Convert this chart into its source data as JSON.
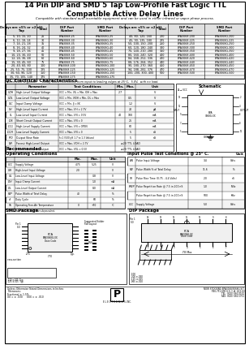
{
  "title": "14 Pin DIP and SMD 5 Tap Low-Profile Fast Logic TTL\nCompatible Active Delay Lines",
  "subtitle": "Compatible with standard auto-insertable equipment and can be used in either infrared or vapor phase process.",
  "table1_rows": [
    [
      "5, 10, 15, 20",
      "25",
      "EPA3068-25",
      "EPA3068G-25",
      "40, 80, 120, 160",
      "200",
      "EPA3068-200",
      "EPA3068G-200"
    ],
    [
      "6, 12, 18, 24",
      "30",
      "EPA3068-30",
      "EPA3068G-30",
      "45, 90, 135, 180",
      "225",
      "EPA3068-225",
      "EPA3068G-225"
    ],
    [
      "7, 14, 21, 28",
      "35",
      "EPA3068-35",
      "EPA3068G-35",
      "50, 100, 150, 200",
      "250",
      "EPA3068-250",
      "EPA3068G-250"
    ],
    [
      "8, 16, 24, 32",
      "40",
      "EPA3068-40",
      "EPA3068G-40",
      "60, 120, 180, 240",
      "300",
      "EPA3068-300",
      "EPA3068G-300"
    ],
    [
      "9, 18, 27, 36",
      "45",
      "EPA3068-45",
      "EPA3068G-45",
      "70, 140, 210, 280",
      "350",
      "EPA3068-350",
      "EPA3068G-350"
    ],
    [
      "10, 20, 30, 40",
      "50",
      "EPA3068-50",
      "EPA3068G-50",
      "80, 160, 240, 320",
      "400",
      "EPA3068-400",
      "EPA3068G-400"
    ],
    [
      "12, 24, 36, 48",
      "60",
      "EPA3068-60",
      "EPA3068G-60",
      "84, 168, 252, 336",
      "420",
      "EPA3068-420",
      "EPA3068G-420"
    ],
    [
      "15, 30, 45, 60",
      "75",
      "EPA3068-75",
      "EPA3068G-75",
      "88, 176, 264, 352",
      "440",
      "EPA3068-440",
      "EPA3068G-440"
    ],
    [
      "20, 40, 60, 80",
      "100",
      "EPA3068-100",
      "EPA3068G-100",
      "90, 180, 270, 360",
      "450",
      "EPA3068-450",
      "EPA3068G-450"
    ],
    [
      "25, 50, 75, 100",
      "125",
      "EPA3068-125",
      "EPA3068G-125",
      "94, 188, 282, 376",
      "470",
      "EPA3068-470",
      "EPA3068G-470"
    ],
    [
      "30, 60, 90, 120",
      "150",
      "EPA3068-150",
      "EPA3068G-150",
      "100, 200, 300, 400",
      "500",
      "EPA3068-500",
      "EPA3068G-500"
    ],
    [
      "35, 70, 105, 140",
      "175",
      "EPA3068-175",
      "EPA3068G-175",
      "",
      "",
      "",
      ""
    ]
  ],
  "footnote": "‡Whichever is greater      Delay times referenced from input to leading edges at 25°C,  5.0V,  with no load.",
  "dc_rows": [
    [
      "VOH",
      "High-Level Output Voltage",
      "VCC = Min, VIL = Min, IOH = Max",
      "2.7",
      "",
      "V"
    ],
    [
      "VOL",
      "Low-Level Output Voltage",
      "VCC = Min, VIOH = Min, IOL = Max",
      "",
      "0.5",
      "V"
    ],
    [
      "VIC",
      "Input Clamp Voltage",
      "VCC = Min, IJ = IIK",
      "",
      "1.2",
      "V"
    ],
    [
      "IIH",
      "High-Level Input Current",
      "VCC = Max, VIH = 2.7V",
      "",
      "20",
      "μA"
    ],
    [
      "IIL",
      "Low-Level Input Current",
      "VCC = Max, VIN = 0.5V",
      "40",
      "100",
      "mA"
    ],
    [
      "IOS",
      "Short Circuit Output Current",
      "VCC = Max, VIN = 0",
      "",
      "25",
      "mA"
    ],
    [
      "ICCL",
      "High-Level Supply Current",
      "VCC = Max, VIN = OPEN",
      "",
      "60",
      "mA"
    ],
    [
      "ICCH",
      "Low-Level Supply Current",
      "VCC = Max, VIN = 0",
      "",
      "5",
      "nS"
    ],
    [
      "tPD",
      "Output Slew Rate",
      "f=1 (500 pS 1.7 to 1.3 Values)",
      "",
      "5",
      "nS"
    ],
    [
      "NH",
      "Fanout High-Level Output",
      "VCC = Max, VIOH = 2.7V",
      "",
      "≥20 TTL LOAD",
      ""
    ],
    [
      "NL",
      "Fanout Low-Level Output",
      "VCC = Max, VOL = 0.5V",
      "",
      "≥20 TTL LOAD",
      ""
    ]
  ],
  "rec_rows": [
    [
      "VCC",
      "Supply Voltage",
      "4.75",
      "5.25",
      "V"
    ],
    [
      "VIH",
      "High-Level Input Voltage",
      "2.0",
      "",
      "V"
    ],
    [
      "VIL",
      "Low-Level Input Voltage",
      "",
      "0.8",
      "V"
    ],
    [
      "IOH",
      "Input Clamp Current",
      "",
      "1.0",
      "mA"
    ],
    [
      "IOL",
      "Low-Level Output Current",
      "",
      "8.0",
      "mA"
    ],
    [
      "PW*",
      "Pulse Width of Total Delay",
      "40",
      "",
      "%"
    ],
    [
      "d*",
      "Duty Cycle",
      "",
      "60",
      "%"
    ],
    [
      "TA",
      "Operating Free-Air Temperature",
      "0",
      "+70",
      "°C"
    ]
  ],
  "pulse_rows": [
    [
      "EIN",
      "Pulse Input Voltage",
      "3.4",
      "Volts"
    ],
    [
      "PW",
      "Pulse Width % of Total Delay",
      "11.6",
      "%"
    ],
    [
      "TR",
      "Pulse Rise Time (0.75 - 4.4 Volts)",
      "2.0",
      "nS"
    ],
    [
      "FREP",
      "Pulse Repetition Rate @ 7.5 in 200 nS",
      "1.0",
      "MHz"
    ],
    [
      "",
      "Pulse Repetition Rate @ 7.5 in 200 nS",
      "500",
      "KHz"
    ],
    [
      "VCC",
      "Supply Voltage",
      "5.0",
      "Volts"
    ]
  ],
  "bg_color": "#ffffff"
}
